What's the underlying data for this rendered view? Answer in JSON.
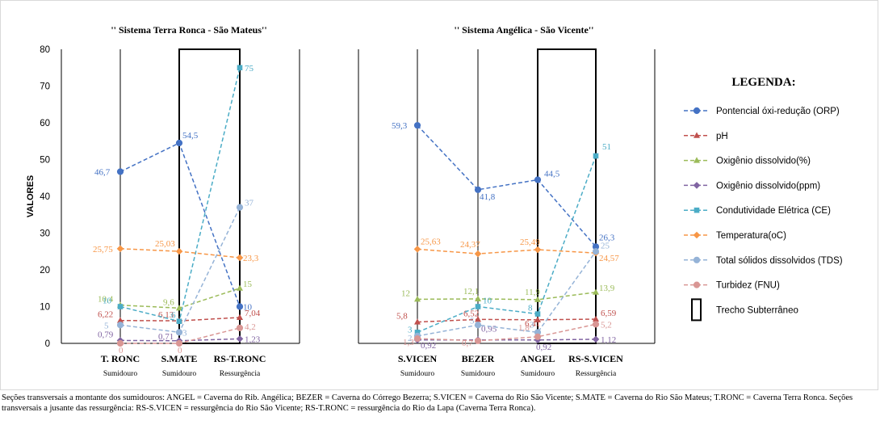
{
  "chart_data": {
    "type": "line",
    "ylabel": "VALORES",
    "ylim": [
      0,
      80
    ],
    "yticks": [
      0,
      10,
      20,
      30,
      40,
      50,
      60,
      70,
      80
    ],
    "grid": false,
    "legend_title": "LEGENDA:",
    "legend_position": "right",
    "panels": [
      {
        "title": "'' Sistema Terra Ronca  - São Mateus''",
        "categories": [
          {
            "name": "T. RONC",
            "sub": "Sumidouro"
          },
          {
            "name": "S.MATE",
            "sub": "Sumidouro"
          },
          {
            "name": "RS-T.RONC",
            "sub": "Ressurgência"
          }
        ],
        "subterranean_segment": [
          1,
          2
        ],
        "series": [
          {
            "name": "Pontencial óxi-redução (ORP)",
            "values": [
              46.7,
              54.5,
              10
            ],
            "labels": [
              "46,7",
              "54,5",
              "10"
            ]
          },
          {
            "name": "pH",
            "values": [
              6.22,
              6.13,
              7.04
            ],
            "labels": [
              "6,22",
              "6,13",
              "7,04"
            ]
          },
          {
            "name": "Oxigênio dissolvido(%)",
            "values": [
              10.4,
              9.6,
              15
            ],
            "labels": [
              "10,4",
              "9,6",
              "15"
            ]
          },
          {
            "name": "Oxigênio dissolvido(ppm)",
            "values": [
              0.79,
              0.71,
              1.23
            ],
            "labels": [
              "0,79",
              "0,71",
              "1,23"
            ]
          },
          {
            "name": "Condutividade Elétrica (CE)",
            "values": [
              10,
              6,
              75
            ],
            "labels": [
              "10",
              "6",
              "75"
            ]
          },
          {
            "name": "Temperatura(oC)",
            "values": [
              25.75,
              25.03,
              23.3
            ],
            "labels": [
              "25,75",
              "25,03",
              "23,3"
            ]
          },
          {
            "name": "Total sólidos dissolvidos (TDS)",
            "values": [
              5,
              3,
              37
            ],
            "labels": [
              "5",
              "3",
              "37"
            ]
          },
          {
            "name": "Turbidez (FNU)",
            "values": [
              0,
              0,
              4.2
            ],
            "labels": [
              "0",
              "0",
              "4,2"
            ]
          }
        ]
      },
      {
        "title": "'' Sistema Angélica - São Vicente''",
        "categories": [
          {
            "name": "S.VICEN",
            "sub": "Sumidouro"
          },
          {
            "name": "BEZER",
            "sub": "Sumidouro"
          },
          {
            "name": "ANGEL",
            "sub": "Sumidouro"
          },
          {
            "name": "RS-S.VICEN",
            "sub": "Ressurgência"
          }
        ],
        "subterranean_segment": [
          2,
          3
        ],
        "series": [
          {
            "name": "Pontencial óxi-redução (ORP)",
            "values": [
              59.3,
              41.8,
              44.5,
              26.3
            ],
            "labels": [
              "59,3",
              "41,8",
              "44,5",
              "26,3"
            ]
          },
          {
            "name": "pH",
            "values": [
              5.8,
              6.52,
              6.41,
              6.59
            ],
            "labels": [
              "5,8",
              "6,52",
              "6,41",
              "6,59"
            ]
          },
          {
            "name": "Oxigênio dissolvido(%)",
            "values": [
              12,
              12.1,
              11.9,
              13.9
            ],
            "labels": [
              "12",
              "12,1",
              "11,9",
              "13,9"
            ]
          },
          {
            "name": "Oxigênio dissolvido(ppm)",
            "values": [
              0.92,
              0.95,
              0.92,
              1.12
            ],
            "labels": [
              "0,92",
              "0,95",
              "0,92",
              "1,12"
            ]
          },
          {
            "name": "Condutividade Elétrica (CE)",
            "values": [
              3,
              10,
              8,
              51
            ],
            "labels": [
              "3",
              "10",
              "8",
              "51"
            ]
          },
          {
            "name": "Temperatura(oC)",
            "values": [
              25.63,
              24.37,
              25.49,
              24.57
            ],
            "labels": [
              "25,63",
              "24,37",
              "25,49",
              "24,57"
            ]
          },
          {
            "name": "Total sólidos dissolvidos (TDS)",
            "values": [
              2,
              5,
              3,
              25
            ],
            "labels": [
              "2",
              "5",
              "3",
              "25"
            ]
          },
          {
            "name": "Turbidez (FNU)",
            "values": [
              1.3,
              0.7,
              1.8,
              5.2
            ],
            "labels": [
              "1,3",
              "0,7",
              "1,8",
              "5,2"
            ]
          }
        ]
      }
    ],
    "legend": [
      {
        "name": "Pontencial óxi-redução (ORP)",
        "color": "#4472c4",
        "marker": "circle"
      },
      {
        "name": "pH",
        "color": "#c0504d",
        "marker": "triangle"
      },
      {
        "name": "Oxigênio dissolvido(%)",
        "color": "#9bbb59",
        "marker": "triangle"
      },
      {
        "name": "Oxigênio dissolvido(ppm)",
        "color": "#8064a2",
        "marker": "diamond"
      },
      {
        "name": "Condutividade Elétrica (CE)",
        "color": "#4bacc6",
        "marker": "square"
      },
      {
        "name": "Temperatura(oC)",
        "color": "#f79646",
        "marker": "diamond"
      },
      {
        "name": "Total sólidos dissolvidos (TDS)",
        "color": "#95b3d7",
        "marker": "circle"
      },
      {
        "name": "Turbidez (FNU)",
        "color": "#d99694",
        "marker": "circle"
      },
      {
        "name": "Trecho Subterrâneo",
        "color": "#000000",
        "marker": "box"
      }
    ]
  },
  "caption": "Seções transversais a montante dos sumidouros: ANGEL = Caverna do Rib. Angélica; BEZER = Caverna do Córrego Bezerra; S.VICEN = Caverna do Rio São Vicente; S.MATE = Caverna do Rio São Mateus; T.RONC = Caverna Terra Ronca. Seções transversais a jusante das ressurgência: RS-S.VICEN = ressurgência do Rio São Vicente; RS-T.RONC = ressurgência do Rio da Lapa (Caverna Terra Ronca)."
}
